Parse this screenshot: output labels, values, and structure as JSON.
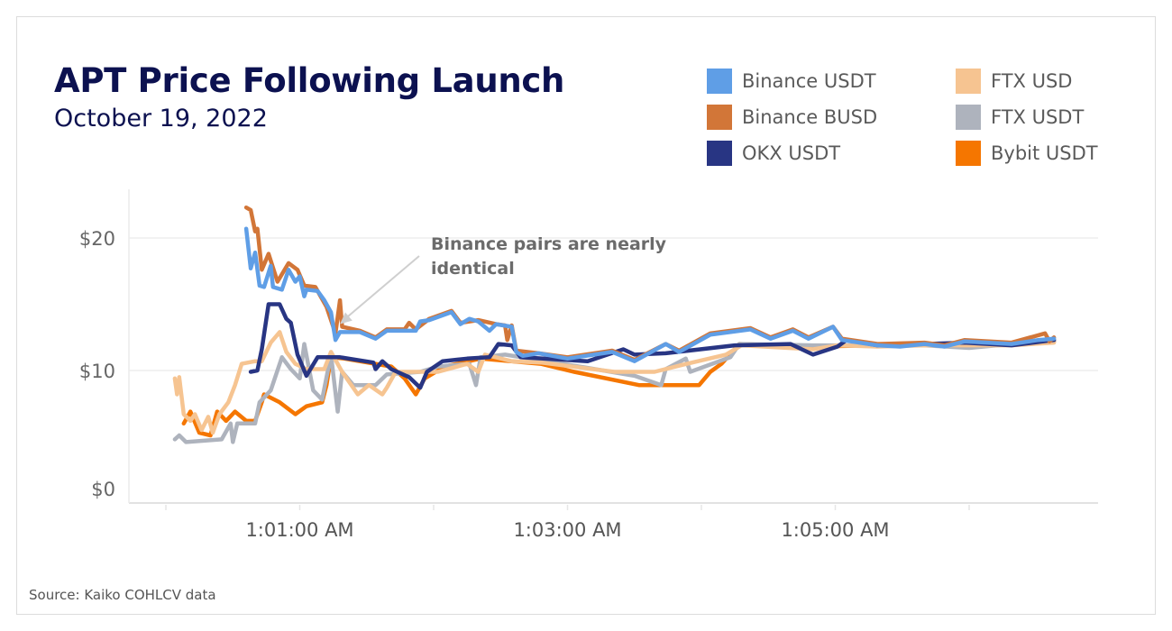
{
  "header": {
    "title": "APT Price Following Launch",
    "subtitle": "October 19, 2022"
  },
  "source": "Source: Kaiko COHLCV data",
  "chart_data": {
    "type": "line",
    "title": "APT Price Following Launch",
    "subtitle": "October 19, 2022",
    "xlabel": "",
    "ylabel": "",
    "y_ticks": [
      "$0",
      "$10",
      "$20"
    ],
    "y_tick_values": [
      0,
      10,
      20
    ],
    "x_ticks": [
      "1:01:00 AM",
      "1:03:00 AM",
      "1:05:00 AM"
    ],
    "x_tick_times": [
      "1:01:00",
      "1:03:00",
      "1:05:00"
    ],
    "ylim": [
      0,
      24
    ],
    "xlim": [
      "1:00:00",
      "1:06:45"
    ],
    "grid": "horizontal",
    "legend_position": "top-right",
    "annotation": {
      "lines": [
        "Binance pairs are nearly",
        "identical"
      ],
      "points_to": {
        "time": "1:01:18",
        "value": 13.5
      }
    },
    "series": [
      {
        "name": "Binance USDT",
        "color": "#5F9EE6",
        "points": [
          [
            "1:00:36",
            20.7
          ],
          [
            "1:00:38",
            17.7
          ],
          [
            "1:00:40",
            18.9
          ],
          [
            "1:00:42",
            16.4
          ],
          [
            "1:00:44",
            16.3
          ],
          [
            "1:00:47",
            17.9
          ],
          [
            "1:00:48",
            16.3
          ],
          [
            "1:00:52",
            16.1
          ],
          [
            "1:00:55",
            17.6
          ],
          [
            "1:00:58",
            16.7
          ],
          [
            "1:01:00",
            17.1
          ],
          [
            "1:01:02",
            15.6
          ],
          [
            "1:01:03",
            16.1
          ],
          [
            "1:01:08",
            16.0
          ],
          [
            "1:01:11",
            15.3
          ],
          [
            "1:01:14",
            14.4
          ],
          [
            "1:01:16",
            12.3
          ],
          [
            "1:01:18",
            12.9
          ],
          [
            "1:01:27",
            12.9
          ],
          [
            "1:01:34",
            12.4
          ],
          [
            "1:01:39",
            13.0
          ],
          [
            "1:01:52",
            13.0
          ],
          [
            "1:01:54",
            13.7
          ],
          [
            "1:01:58",
            13.8
          ],
          [
            "1:02:08",
            14.4
          ],
          [
            "1:02:12",
            13.5
          ],
          [
            "1:02:16",
            13.9
          ],
          [
            "1:02:20",
            13.7
          ],
          [
            "1:02:25",
            13.0
          ],
          [
            "1:02:28",
            13.5
          ],
          [
            "1:02:35",
            13.3
          ],
          [
            "1:02:37",
            11.4
          ],
          [
            "1:02:40",
            11.1
          ],
          [
            "1:02:47",
            11.3
          ],
          [
            "1:03:00",
            10.9
          ],
          [
            "1:03:20",
            11.4
          ],
          [
            "1:03:30",
            10.7
          ],
          [
            "1:03:44",
            12.0
          ],
          [
            "1:03:50",
            11.4
          ],
          [
            "1:04:04",
            12.7
          ],
          [
            "1:04:22",
            13.1
          ],
          [
            "1:04:31",
            12.4
          ],
          [
            "1:04:41",
            13.0
          ],
          [
            "1:04:48",
            12.4
          ],
          [
            "1:04:59",
            13.3
          ],
          [
            "1:05:03",
            12.3
          ],
          [
            "1:05:19",
            11.9
          ],
          [
            "1:05:29",
            11.8
          ],
          [
            "1:05:40",
            12.0
          ],
          [
            "1:05:49",
            11.8
          ],
          [
            "1:05:58",
            12.2
          ],
          [
            "1:06:19",
            12.0
          ],
          [
            "1:06:31",
            12.3
          ],
          [
            "1:06:38",
            12.4
          ]
        ]
      },
      {
        "name": "Binance BUSD",
        "color": "#D27638",
        "points": [
          [
            "1:00:36",
            22.3
          ],
          [
            "1:00:38",
            22.1
          ],
          [
            "1:00:40",
            20.5
          ],
          [
            "1:00:41",
            20.7
          ],
          [
            "1:00:43",
            17.6
          ],
          [
            "1:00:46",
            18.8
          ],
          [
            "1:00:50",
            16.7
          ],
          [
            "1:00:55",
            18.1
          ],
          [
            "1:00:59",
            17.6
          ],
          [
            "1:01:02",
            16.4
          ],
          [
            "1:01:07",
            16.3
          ],
          [
            "1:01:12",
            14.8
          ],
          [
            "1:01:16",
            12.8
          ],
          [
            "1:01:18",
            15.3
          ],
          [
            "1:01:19",
            13.3
          ],
          [
            "1:01:27",
            13.0
          ],
          [
            "1:01:34",
            12.5
          ],
          [
            "1:01:39",
            13.1
          ],
          [
            "1:01:47",
            13.1
          ],
          [
            "1:01:49",
            13.6
          ],
          [
            "1:01:52",
            13.1
          ],
          [
            "1:01:58",
            13.9
          ],
          [
            "1:02:08",
            14.5
          ],
          [
            "1:02:12",
            13.6
          ],
          [
            "1:02:20",
            13.8
          ],
          [
            "1:02:28",
            13.5
          ],
          [
            "1:02:32",
            13.4
          ],
          [
            "1:02:33",
            12.3
          ],
          [
            "1:02:35",
            13.4
          ],
          [
            "1:02:37",
            11.5
          ],
          [
            "1:02:47",
            11.3
          ],
          [
            "1:03:00",
            11.0
          ],
          [
            "1:03:20",
            11.5
          ],
          [
            "1:03:30",
            10.8
          ],
          [
            "1:03:44",
            12.0
          ],
          [
            "1:03:50",
            11.5
          ],
          [
            "1:04:04",
            12.8
          ],
          [
            "1:04:22",
            13.2
          ],
          [
            "1:04:31",
            12.5
          ],
          [
            "1:04:41",
            13.1
          ],
          [
            "1:04:48",
            12.5
          ],
          [
            "1:04:59",
            13.3
          ],
          [
            "1:05:03",
            12.4
          ],
          [
            "1:05:19",
            12.0
          ],
          [
            "1:05:40",
            12.1
          ],
          [
            "1:05:49",
            11.9
          ],
          [
            "1:05:58",
            12.3
          ],
          [
            "1:06:19",
            12.1
          ],
          [
            "1:06:34",
            12.8
          ],
          [
            "1:06:36",
            12.2
          ],
          [
            "1:06:38",
            12.5
          ]
        ]
      },
      {
        "name": "OKX USDT",
        "color": "#283583",
        "points": [
          [
            "1:00:38",
            9.9
          ],
          [
            "1:00:41",
            10.0
          ],
          [
            "1:00:43",
            11.6
          ],
          [
            "1:00:46",
            15.0
          ],
          [
            "1:00:51",
            15.0
          ],
          [
            "1:00:54",
            13.9
          ],
          [
            "1:00:56",
            13.6
          ],
          [
            "1:00:59",
            11.2
          ],
          [
            "1:01:03",
            9.6
          ],
          [
            "1:01:08",
            11.0
          ],
          [
            "1:01:18",
            11.0
          ],
          [
            "1:01:33",
            10.6
          ],
          [
            "1:01:34",
            10.1
          ],
          [
            "1:01:37",
            10.7
          ],
          [
            "1:01:41",
            10.1
          ],
          [
            "1:01:49",
            9.5
          ],
          [
            "1:01:54",
            8.7
          ],
          [
            "1:01:57",
            9.9
          ],
          [
            "1:02:04",
            10.7
          ],
          [
            "1:02:15",
            10.9
          ],
          [
            "1:02:25",
            11.0
          ],
          [
            "1:02:29",
            12.0
          ],
          [
            "1:02:35",
            11.9
          ],
          [
            "1:02:39",
            11.0
          ],
          [
            "1:03:09",
            10.7
          ],
          [
            "1:03:25",
            11.6
          ],
          [
            "1:03:30",
            11.2
          ],
          [
            "1:03:44",
            11.3
          ],
          [
            "1:04:15",
            11.9
          ],
          [
            "1:04:40",
            12.0
          ],
          [
            "1:04:50",
            11.2
          ],
          [
            "1:05:01",
            11.8
          ],
          [
            "1:05:05",
            12.3
          ],
          [
            "1:05:19",
            11.9
          ],
          [
            "1:05:40",
            12.0
          ],
          [
            "1:05:58",
            12.1
          ],
          [
            "1:06:19",
            11.9
          ],
          [
            "1:06:38",
            12.3
          ]
        ]
      },
      {
        "name": "FTX USD",
        "color": "#F6C491",
        "points": [
          [
            "1:00:04",
            9.4
          ],
          [
            "1:00:05",
            8.2
          ],
          [
            "1:00:06",
            9.5
          ],
          [
            "1:00:08",
            6.7
          ],
          [
            "1:00:11",
            6.2
          ],
          [
            "1:00:13",
            6.7
          ],
          [
            "1:00:16",
            5.5
          ],
          [
            "1:00:19",
            6.5
          ],
          [
            "1:00:21",
            5.3
          ],
          [
            "1:00:24",
            6.7
          ],
          [
            "1:00:28",
            7.6
          ],
          [
            "1:00:31",
            8.9
          ],
          [
            "1:00:34",
            10.5
          ],
          [
            "1:00:40",
            10.7
          ],
          [
            "1:00:43",
            10.7
          ],
          [
            "1:00:47",
            12.1
          ],
          [
            "1:00:51",
            12.9
          ],
          [
            "1:00:54",
            11.4
          ],
          [
            "1:00:58",
            10.5
          ],
          [
            "1:01:03",
            10.1
          ],
          [
            "1:01:11",
            10.1
          ],
          [
            "1:01:14",
            11.4
          ],
          [
            "1:01:19",
            9.9
          ],
          [
            "1:01:26",
            8.2
          ],
          [
            "1:01:31",
            8.9
          ],
          [
            "1:01:37",
            8.2
          ],
          [
            "1:01:39",
            8.7
          ],
          [
            "1:01:43",
            9.9
          ],
          [
            "1:02:02",
            9.9
          ],
          [
            "1:02:15",
            10.5
          ],
          [
            "1:02:20",
            9.9
          ],
          [
            "1:02:23",
            11.2
          ],
          [
            "1:02:35",
            10.7
          ],
          [
            "1:02:48",
            10.6
          ],
          [
            "1:03:07",
            10.2
          ],
          [
            "1:03:21",
            9.9
          ],
          [
            "1:03:39",
            9.9
          ],
          [
            "1:03:51",
            10.4
          ],
          [
            "1:04:11",
            11.2
          ],
          [
            "1:04:18",
            11.9
          ],
          [
            "1:04:50",
            11.6
          ],
          [
            "1:05:01",
            11.9
          ],
          [
            "1:05:19",
            11.8
          ],
          [
            "1:05:40",
            11.9
          ],
          [
            "1:05:58",
            11.9
          ],
          [
            "1:06:19",
            11.9
          ],
          [
            "1:06:38",
            12.1
          ]
        ]
      },
      {
        "name": "FTX USDT",
        "color": "#AEB3BD",
        "points": [
          [
            "1:00:04",
            4.8
          ],
          [
            "1:00:06",
            5.1
          ],
          [
            "1:00:09",
            4.6
          ],
          [
            "1:00:25",
            4.8
          ],
          [
            "1:00:29",
            6.0
          ],
          [
            "1:00:30",
            4.6
          ],
          [
            "1:00:32",
            6.0
          ],
          [
            "1:00:40",
            6.0
          ],
          [
            "1:00:42",
            7.6
          ],
          [
            "1:00:47",
            8.5
          ],
          [
            "1:00:52",
            11.0
          ],
          [
            "1:00:56",
            10.1
          ],
          [
            "1:01:00",
            9.4
          ],
          [
            "1:01:02",
            12.0
          ],
          [
            "1:01:06",
            8.5
          ],
          [
            "1:01:10",
            7.8
          ],
          [
            "1:01:14",
            11.2
          ],
          [
            "1:01:17",
            6.9
          ],
          [
            "1:01:19",
            9.9
          ],
          [
            "1:01:24",
            8.9
          ],
          [
            "1:01:34",
            8.9
          ],
          [
            "1:01:39",
            9.7
          ],
          [
            "1:01:54",
            9.9
          ],
          [
            "1:02:02",
            10.3
          ],
          [
            "1:02:16",
            10.5
          ],
          [
            "1:02:19",
            8.9
          ],
          [
            "1:02:21",
            11.0
          ],
          [
            "1:02:32",
            11.2
          ],
          [
            "1:03:09",
            10.2
          ],
          [
            "1:03:30",
            9.6
          ],
          [
            "1:03:42",
            8.9
          ],
          [
            "1:03:44",
            10.1
          ],
          [
            "1:03:53",
            10.9
          ],
          [
            "1:03:55",
            9.9
          ],
          [
            "1:04:13",
            11.0
          ],
          [
            "1:04:17",
            12.0
          ],
          [
            "1:04:50",
            11.9
          ],
          [
            "1:05:19",
            11.9
          ],
          [
            "1:05:40",
            11.9
          ],
          [
            "1:06:00",
            11.7
          ],
          [
            "1:06:19",
            12.0
          ],
          [
            "1:06:38",
            12.2
          ]
        ]
      },
      {
        "name": "Bybit USDT",
        "color": "#F57600",
        "points": [
          [
            "1:00:08",
            6.0
          ],
          [
            "1:00:11",
            6.9
          ],
          [
            "1:00:15",
            5.3
          ],
          [
            "1:00:20",
            5.1
          ],
          [
            "1:00:23",
            6.9
          ],
          [
            "1:00:27",
            6.2
          ],
          [
            "1:00:31",
            6.9
          ],
          [
            "1:00:36",
            6.2
          ],
          [
            "1:00:40",
            6.2
          ],
          [
            "1:00:43",
            7.6
          ],
          [
            "1:00:44",
            8.2
          ],
          [
            "1:00:51",
            7.6
          ],
          [
            "1:00:58",
            6.7
          ],
          [
            "1:01:03",
            7.3
          ],
          [
            "1:01:10",
            7.6
          ],
          [
            "1:01:12",
            8.9
          ],
          [
            "1:01:14",
            11.0
          ],
          [
            "1:01:20",
            10.9
          ],
          [
            "1:01:41",
            10.3
          ],
          [
            "1:01:47",
            9.4
          ],
          [
            "1:01:52",
            8.2
          ],
          [
            "1:01:56",
            9.4
          ],
          [
            "1:02:05",
            10.3
          ],
          [
            "1:02:21",
            10.9
          ],
          [
            "1:02:48",
            10.5
          ],
          [
            "1:03:03",
            9.9
          ],
          [
            "1:03:32",
            8.9
          ],
          [
            "1:03:59",
            8.9
          ],
          [
            "1:04:04",
            9.9
          ],
          [
            "1:04:09",
            10.5
          ],
          [
            "1:04:17",
            12.0
          ],
          [
            "1:04:50",
            11.8
          ],
          [
            "1:05:19",
            11.9
          ],
          [
            "1:05:40",
            11.9
          ],
          [
            "1:06:19",
            12.0
          ],
          [
            "1:06:38",
            12.2
          ]
        ]
      }
    ]
  }
}
